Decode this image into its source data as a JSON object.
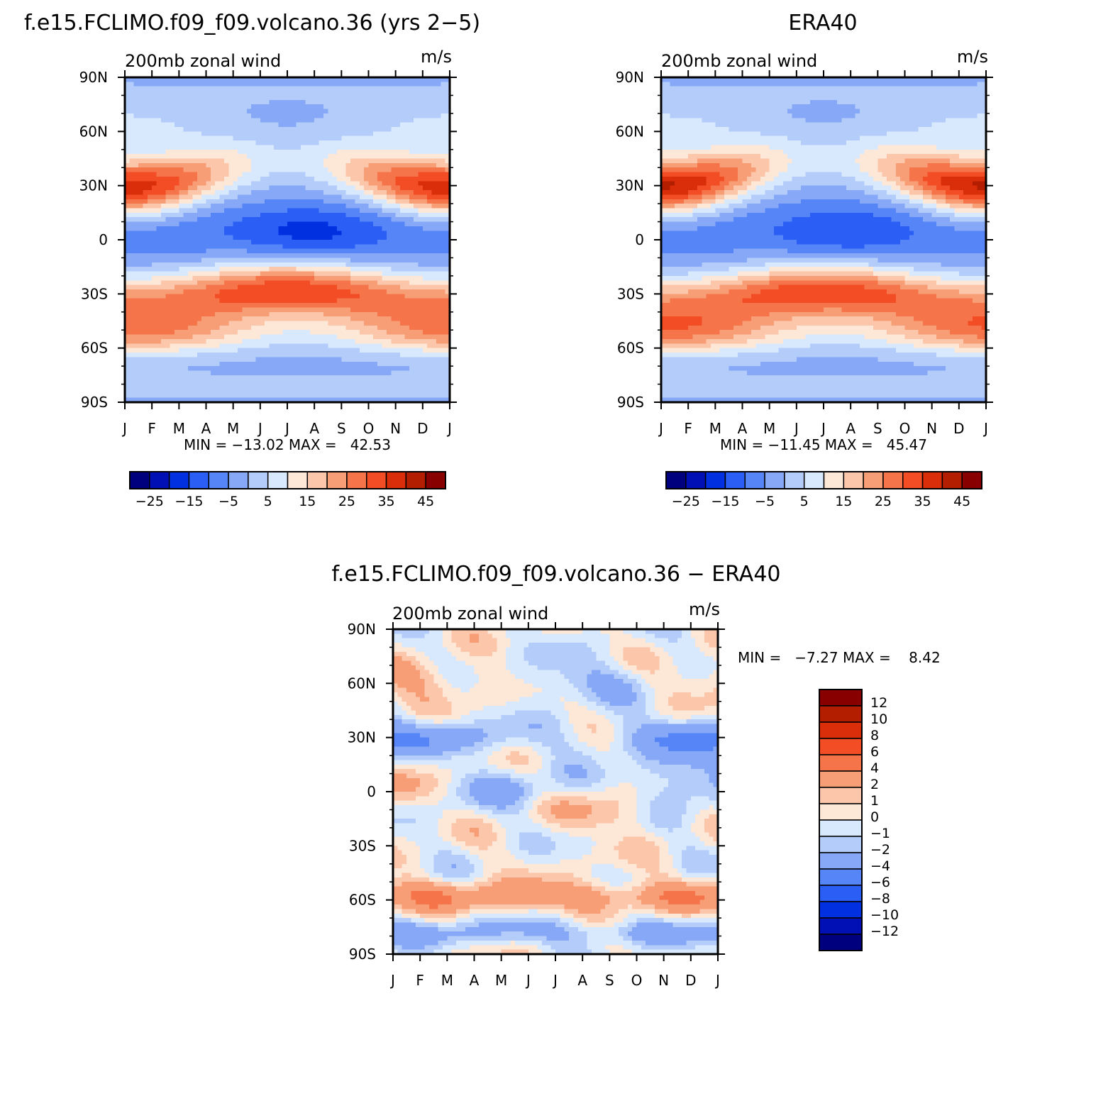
{
  "chart_data": [
    {
      "type": "heatmap",
      "title": "f.e15.FCLIMO.f09_f09.volcano.36 (yrs 2−5)",
      "subtitle_left": "200mb zonal wind",
      "subtitle_right": "m/s",
      "x_labels": [
        "J",
        "F",
        "M",
        "A",
        "M",
        "J",
        "J",
        "A",
        "S",
        "O",
        "N",
        "D",
        "J"
      ],
      "y_labels": [
        "90N",
        "60N",
        "30N",
        "0",
        "30S",
        "60S",
        "90S"
      ],
      "stats": "MIN = −13.02 MAX =   42.53",
      "z_min": -13.02,
      "z_max": 42.53,
      "jet_nh": {
        "peak": 42,
        "lat": 29,
        "peak_month": "Jan"
      },
      "jet_sh": {
        "peak": 38,
        "lat": -28,
        "peak_month": "Jul"
      },
      "equatorial_min": -13,
      "colorbar": {
        "orientation": "horizontal",
        "levels": [
          -25,
          -20,
          -15,
          -10,
          -5,
          0,
          5,
          10,
          15,
          20,
          25,
          30,
          35,
          40,
          45
        ],
        "labels": [
          "−25",
          "−15",
          "−5",
          "5",
          "15",
          "25",
          "35",
          "45"
        ],
        "colors": [
          "#00007f",
          "#0010b4",
          "#0030e0",
          "#2a5ef5",
          "#5585f7",
          "#86a8f7",
          "#b4ccfa",
          "#d8e8fd",
          "#fde7d6",
          "#fbc6a9",
          "#f89e77",
          "#f6744a",
          "#f24d24",
          "#da2d09",
          "#b41e00",
          "#880000"
        ]
      }
    },
    {
      "type": "heatmap",
      "title": "ERA40",
      "subtitle_left": "200mb zonal wind",
      "subtitle_right": "m/s",
      "x_labels": [
        "J",
        "F",
        "M",
        "A",
        "M",
        "J",
        "J",
        "A",
        "S",
        "O",
        "N",
        "D",
        "J"
      ],
      "y_labels": [
        "90N",
        "60N",
        "30N",
        "0",
        "30S",
        "60S",
        "90S"
      ],
      "stats": "MIN = −11.45 MAX =   45.47",
      "z_min": -11.45,
      "z_max": 45.47,
      "jet_nh": {
        "peak": 45,
        "lat": 30,
        "peak_month": "Jan"
      },
      "jet_sh": {
        "peak": 38,
        "lat": -29,
        "peak_month": "Jul"
      },
      "equatorial_min": -11,
      "colorbar": {
        "orientation": "horizontal",
        "levels": [
          -25,
          -20,
          -15,
          -10,
          -5,
          0,
          5,
          10,
          15,
          20,
          25,
          30,
          35,
          40,
          45
        ],
        "labels": [
          "−25",
          "−15",
          "−5",
          "5",
          "15",
          "25",
          "35",
          "45"
        ],
        "colors": [
          "#00007f",
          "#0010b4",
          "#0030e0",
          "#2a5ef5",
          "#5585f7",
          "#86a8f7",
          "#b4ccfa",
          "#d8e8fd",
          "#fde7d6",
          "#fbc6a9",
          "#f89e77",
          "#f6744a",
          "#f24d24",
          "#da2d09",
          "#b41e00",
          "#880000"
        ]
      }
    },
    {
      "type": "heatmap",
      "title": "f.e15.FCLIMO.f09_f09.volcano.36 − ERA40",
      "subtitle_left": "200mb zonal wind",
      "subtitle_right": "m/s",
      "x_labels": [
        "J",
        "F",
        "M",
        "A",
        "M",
        "J",
        "J",
        "A",
        "S",
        "O",
        "N",
        "D",
        "J"
      ],
      "y_labels": [
        "90N",
        "60N",
        "30N",
        "0",
        "30S",
        "60S",
        "90S"
      ],
      "stats": "MIN =   −7.27 MAX =    8.42",
      "z_min": -7.27,
      "z_max": 8.42,
      "colorbar": {
        "orientation": "vertical",
        "levels": [
          -12,
          -10,
          -8,
          -6,
          -4,
          -2,
          -1,
          0,
          1,
          2,
          4,
          6,
          8,
          10,
          12
        ],
        "labels": [
          "12",
          "10",
          "8",
          "6",
          "4",
          "2",
          "1",
          "0",
          "−1",
          "−2",
          "−4",
          "−6",
          "−8",
          "−10",
          "−12"
        ],
        "colors": [
          "#00007f",
          "#0010b4",
          "#0030e0",
          "#2a5ef5",
          "#5585f7",
          "#86a8f7",
          "#b4ccfa",
          "#d8e8fd",
          "#fde7d6",
          "#fbc6a9",
          "#f89e77",
          "#f6744a",
          "#f24d24",
          "#da2d09",
          "#b41e00",
          "#880000"
        ]
      }
    }
  ]
}
